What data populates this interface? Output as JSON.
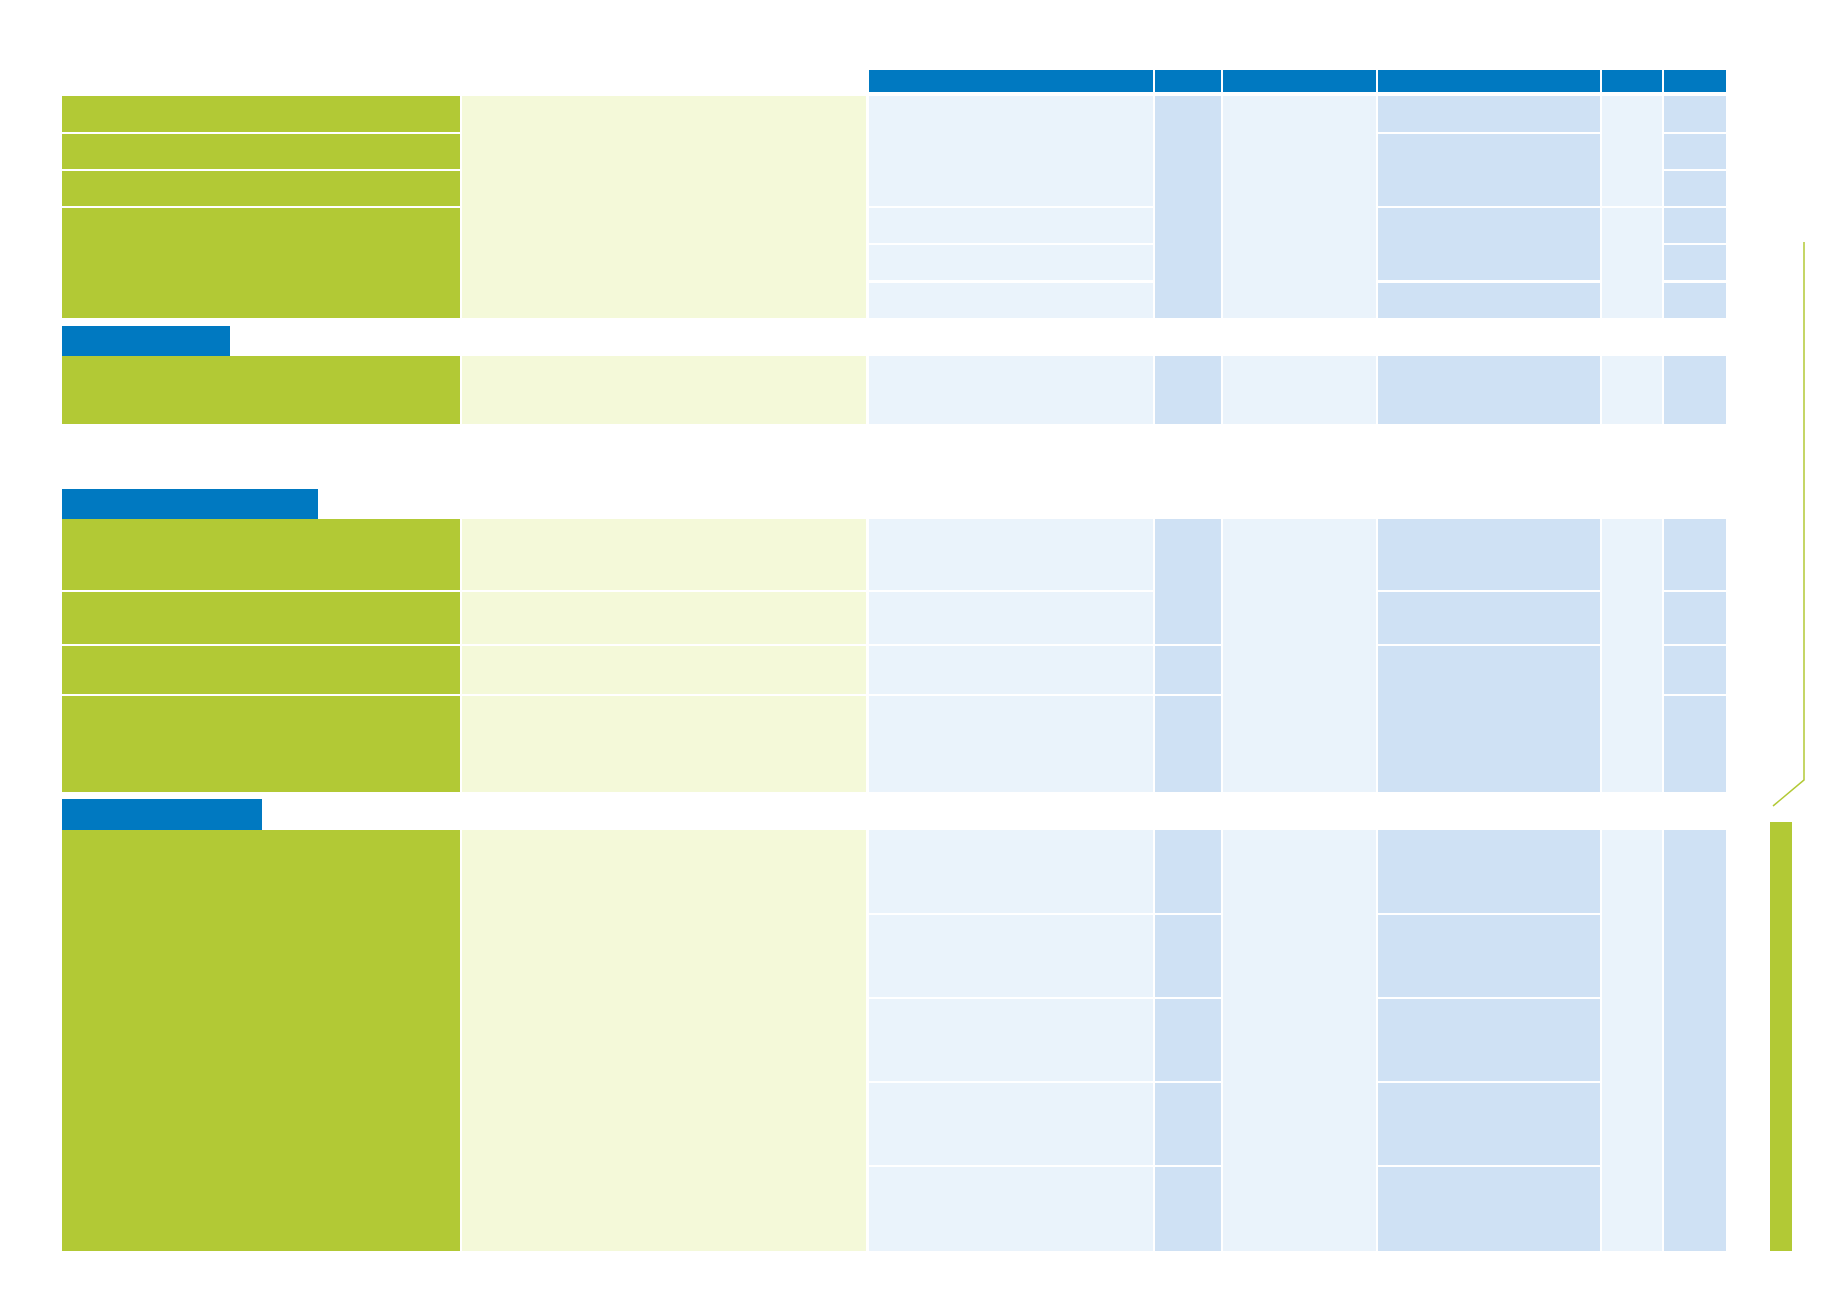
{
  "colors": {
    "header_blue": "#0079c1",
    "green": "#b2c935",
    "light_green": "#f4f9d9",
    "light_blue": "#eaf3fb",
    "mid_blue": "#cfe1f4"
  },
  "table": {
    "column_headers": [
      "",
      "",
      "",
      "",
      "",
      ""
    ],
    "section_1": {
      "title": ""
    },
    "section_2": {
      "title": ""
    },
    "section_3": {
      "title": ""
    },
    "side_label": ""
  }
}
